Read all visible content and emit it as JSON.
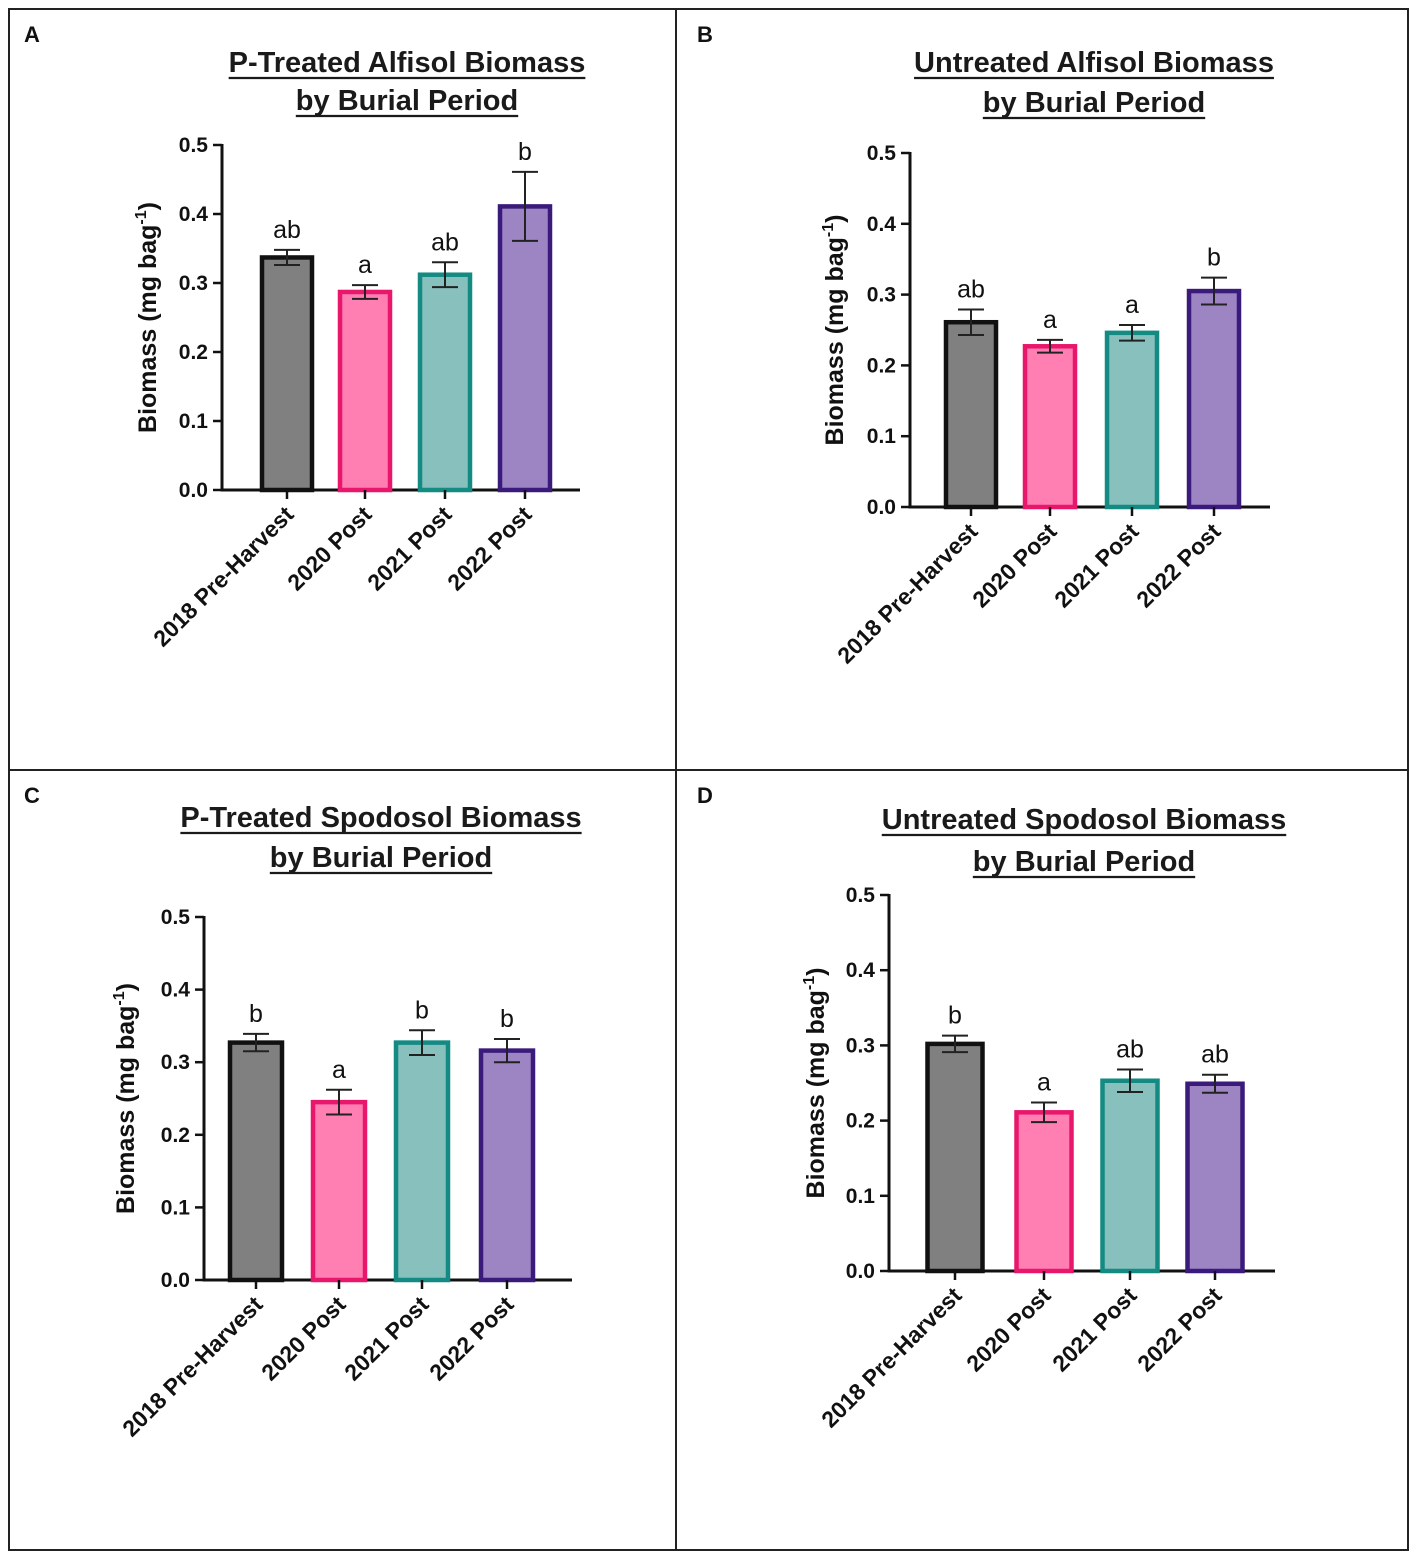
{
  "chart_data": [
    {
      "type": "bar",
      "panel_label": "A",
      "title": [
        "P-Treated Alfisol Biomass",
        "by Burial  Period"
      ],
      "ylabel": "Biomass (mg bag",
      "ylabel_sup": "-1",
      "ylabel_close": ")",
      "ylim": [
        0,
        0.5
      ],
      "yticks": [
        "0.0",
        "0.1",
        "0.2",
        "0.3",
        "0.4",
        "0.5"
      ],
      "categories": [
        "2018 Pre-Harvest",
        "2020 Post",
        "2021 Post",
        "2022 Post"
      ],
      "values": [
        0.337,
        0.287,
        0.312,
        0.411
      ],
      "errors": [
        0.011,
        0.01,
        0.018,
        0.05
      ],
      "letters": [
        "ab",
        "a",
        "ab",
        "b"
      ]
    },
    {
      "type": "bar",
      "panel_label": "B",
      "title": [
        "Untreated Alfisol Biomass",
        "by Burial  Period"
      ],
      "ylabel": "Biomass (mg bag",
      "ylabel_sup": "-1",
      "ylabel_close": ")",
      "ylim": [
        0,
        0.5
      ],
      "yticks": [
        "0.0",
        "0.1",
        "0.2",
        "0.3",
        "0.4",
        "0.5"
      ],
      "categories": [
        "2018 Pre-Harvest",
        "2020 Post",
        "2021 Post",
        "2022 Post"
      ],
      "values": [
        0.261,
        0.227,
        0.246,
        0.305
      ],
      "errors": [
        0.018,
        0.009,
        0.011,
        0.019
      ],
      "letters": [
        "ab",
        "a",
        "a",
        "b"
      ]
    },
    {
      "type": "bar",
      "panel_label": "C",
      "title": [
        "P-Treated Spodosol Biomass",
        "by Burial  Period"
      ],
      "ylabel": "Biomass (mg bag",
      "ylabel_sup": "-1",
      "ylabel_close": ")",
      "ylim": [
        0,
        0.5
      ],
      "yticks": [
        "0.0",
        "0.1",
        "0.2",
        "0.3",
        "0.4",
        "0.5"
      ],
      "categories": [
        "2018 Pre-Harvest",
        "2020 Post",
        "2021 Post",
        "2022 Post"
      ],
      "values": [
        0.327,
        0.245,
        0.327,
        0.316
      ],
      "errors": [
        0.012,
        0.017,
        0.017,
        0.016
      ],
      "letters": [
        "b",
        "a",
        "b",
        "b"
      ]
    },
    {
      "type": "bar",
      "panel_label": "D",
      "title": [
        "Untreated Spodosol Biomass",
        "by Burial  Period"
      ],
      "ylabel": "Biomass (mg bag",
      "ylabel_sup": "-1",
      "ylabel_close": ")",
      "ylim": [
        0,
        0.5
      ],
      "yticks": [
        "0.0",
        "0.1",
        "0.2",
        "0.3",
        "0.4",
        "0.5"
      ],
      "categories": [
        "2018 Pre-Harvest",
        "2020 Post",
        "2021 Post",
        "2022 Post"
      ],
      "values": [
        0.302,
        0.211,
        0.253,
        0.249
      ],
      "errors": [
        0.011,
        0.013,
        0.015,
        0.012
      ],
      "letters": [
        "b",
        "a",
        "ab",
        "ab"
      ]
    }
  ],
  "colors": {
    "fills": [
      "#808080",
      "#ff7fb2",
      "#88c0bd",
      "#9d85c4"
    ],
    "edges": [
      "#111111",
      "#e8176c",
      "#138a82",
      "#3a1a7a"
    ]
  }
}
